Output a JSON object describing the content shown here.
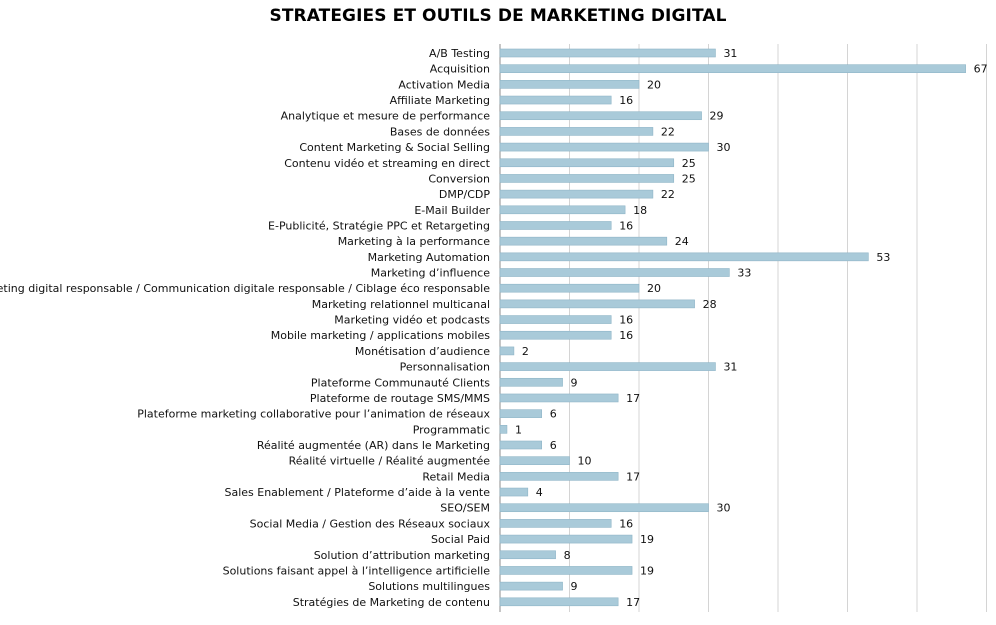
{
  "chart_data": {
    "type": "bar",
    "orientation": "horizontal",
    "title": "STRATEGIES ET OUTILS DE MARKETING DIGITAL",
    "categories": [
      "A/B Testing",
      "Acquisition",
      "Activation Media",
      "Affiliate Marketing",
      "Analytique et mesure de performance",
      "Bases de données",
      "Content Marketing & Social Selling",
      "Contenu vidéo et streaming en direct",
      "Conversion",
      "DMP/CDP",
      "E-Mail Builder",
      "E-Publicité, Stratégie PPC et Retargeting",
      "Marketing à la performance",
      "Marketing Automation",
      "Marketing d’influence",
      "Marketing digital responsable / Communication digitale responsable / Ciblage éco responsable",
      "Marketing relationnel multicanal",
      "Marketing vidéo et podcasts",
      "Mobile marketing / applications mobiles",
      "Monétisation d’audience",
      "Personnalisation",
      "Plateforme Communauté Clients",
      "Plateforme de routage SMS/MMS",
      "Plateforme marketing collaborative pour l’animation de réseaux",
      "Programmatic",
      "Réalité augmentée (AR) dans le Marketing",
      "Réalité virtuelle / Réalité augmentée",
      "Retail Media",
      "Sales Enablement / Plateforme d’aide à la vente",
      "SEO/SEM",
      "Social Media / Gestion des Réseaux sociaux",
      "Social Paid",
      "Solution d’attribution marketing",
      "Solutions faisant appel à l’intelligence artificielle",
      "Solutions multilingues",
      "Stratégies de Marketing de contenu"
    ],
    "values": [
      31,
      67,
      20,
      16,
      29,
      22,
      30,
      25,
      25,
      22,
      18,
      16,
      24,
      53,
      33,
      20,
      28,
      16,
      16,
      2,
      31,
      9,
      17,
      6,
      1,
      6,
      10,
      17,
      4,
      30,
      16,
      19,
      8,
      19,
      9,
      17
    ],
    "xlim": [
      0,
      70
    ],
    "x_gridline_step": 10,
    "grid": true,
    "show_data_labels": true,
    "show_x_tick_labels": false,
    "legend": "none",
    "colors": {
      "bar_fill": "#a9cad9",
      "bar_edge": "#8fb5c7",
      "grid": "#d4d4d4",
      "axis": "#8c8c8c"
    }
  }
}
